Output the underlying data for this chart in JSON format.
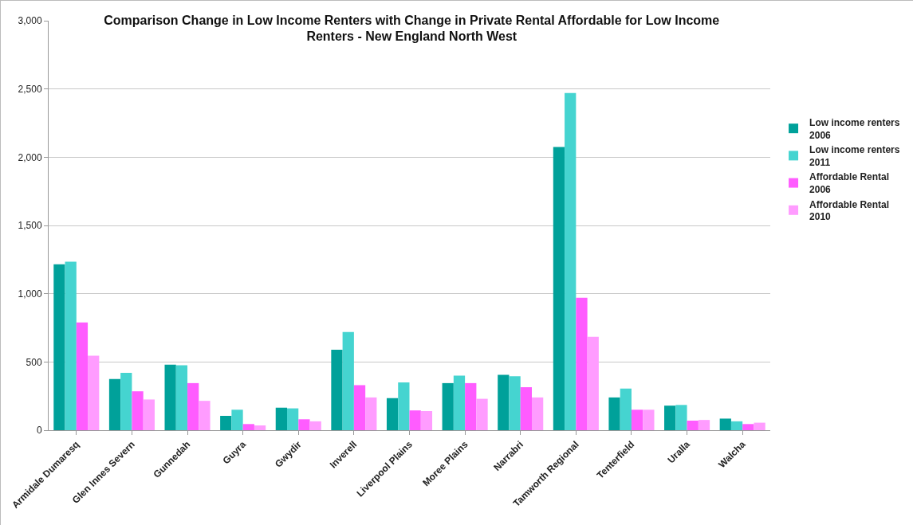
{
  "chart_data": {
    "type": "bar",
    "title": "Comparison Change in Low Income Renters with Change in Private Rental Affordable for Low Income Renters - New England North West",
    "categories": [
      "Armidale Dumaresq",
      "Glen Innes Severn",
      "Gunnedah",
      "Guyra",
      "Gwydir",
      "Inverell",
      "Liverpool Plains",
      "Moree Plains",
      "Narrabri",
      "Tamworth Regional",
      "Tenterfield",
      "Uralla",
      "Walcha"
    ],
    "series": [
      {
        "name": "Low income renters 2006",
        "color": "#00a19a",
        "values": [
          1215,
          375,
          480,
          105,
          165,
          590,
          235,
          345,
          405,
          2075,
          240,
          180,
          85
        ]
      },
      {
        "name": "Low income renters 2011",
        "color": "#45d4d0",
        "values": [
          1235,
          420,
          475,
          150,
          160,
          720,
          350,
          400,
          395,
          2470,
          305,
          185,
          65
        ]
      },
      {
        "name": "Affordable Rental 2006",
        "color": "#ff5cff",
        "values": [
          790,
          285,
          345,
          45,
          80,
          330,
          145,
          345,
          315,
          970,
          150,
          70,
          45
        ]
      },
      {
        "name": "Affordable Rental 2010",
        "color": "#ff9cff",
        "values": [
          545,
          225,
          215,
          35,
          65,
          240,
          140,
          230,
          240,
          685,
          150,
          75,
          55
        ]
      }
    ],
    "ylim": [
      0,
      3000
    ],
    "yticks": [
      {
        "value": 0,
        "label": "0"
      },
      {
        "value": 500,
        "label": "500"
      },
      {
        "value": 1000,
        "label": "1,000"
      },
      {
        "value": 1500,
        "label": "1,500"
      },
      {
        "value": 2000,
        "label": "2,000"
      },
      {
        "value": 2500,
        "label": "2,500"
      },
      {
        "value": 3000,
        "label": "3,000"
      }
    ],
    "grid": "y",
    "legend": "right"
  }
}
